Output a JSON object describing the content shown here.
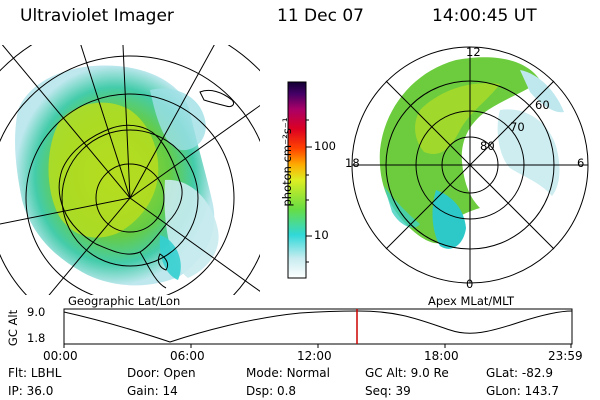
{
  "header": {
    "instrument": "Ultraviolet Imager",
    "date": "11 Dec 07",
    "time": "14:00:45 UT"
  },
  "panels": {
    "left_label": "Geographic Lat/Lon",
    "right_label": "Apex MLat/MLT",
    "right_lat_labels": [
      "80",
      "70",
      "60"
    ],
    "right_mlt_labels": {
      "top": "12",
      "left": "18",
      "right": "6",
      "bottom": "0"
    }
  },
  "colorbar": {
    "unit_label": "photon cm⁻²s⁻¹",
    "ticks": [
      "100",
      "10"
    ]
  },
  "altitude_plot": {
    "ylabel": "GC Alt",
    "y_ticks": [
      "9.0",
      "1.8"
    ],
    "x_ticks": [
      "00:00",
      "06:00",
      "12:00",
      "18:00",
      "23:59"
    ],
    "marker_color": "#cc0000"
  },
  "status": {
    "row1": [
      {
        "label": "Flt:",
        "value": "LBHL"
      },
      {
        "label": "Door:",
        "value": "Open"
      },
      {
        "label": "Mode:",
        "value": "Normal"
      },
      {
        "label": "GC Alt:",
        "value": "9.0 Re"
      },
      {
        "label": "GLat:",
        "value": "-82.9"
      }
    ],
    "row2": [
      {
        "label": "IP:",
        "value": "36.0"
      },
      {
        "label": "Gain:",
        "value": "14"
      },
      {
        "label": "Dsp:",
        "value": "0.8"
      },
      {
        "label": "Seq:",
        "value": "39"
      },
      {
        "label": "GLon:",
        "value": "143.7"
      }
    ]
  }
}
